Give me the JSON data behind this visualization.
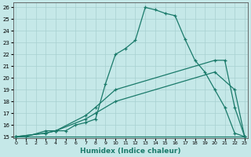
{
  "bg_color": "#c5e8e8",
  "grid_color": "#a8d0d0",
  "line_color": "#1a7a6a",
  "xlabel": "Humidex (Indice chaleur)",
  "xlim": [
    -0.3,
    23.3
  ],
  "ylim": [
    14.9,
    26.4
  ],
  "yticks": [
    15,
    16,
    17,
    18,
    19,
    20,
    21,
    22,
    23,
    24,
    25,
    26
  ],
  "xticks": [
    0,
    1,
    2,
    3,
    4,
    5,
    6,
    7,
    8,
    9,
    10,
    11,
    12,
    13,
    14,
    15,
    16,
    17,
    18,
    19,
    20,
    21,
    22,
    23
  ],
  "series": [
    {
      "x": [
        0,
        1,
        3,
        4,
        5,
        6,
        7,
        8,
        9,
        10,
        11,
        12,
        13,
        14,
        15,
        16,
        17,
        18,
        19,
        20,
        21,
        22,
        23
      ],
      "y": [
        15,
        15,
        15.5,
        15.5,
        15.5,
        16.0,
        16.2,
        16.5,
        19.5,
        22.0,
        22.5,
        23.2,
        26.0,
        25.8,
        25.5,
        25.3,
        23.3,
        21.5,
        20.5,
        19.0,
        17.5,
        15.3,
        15
      ]
    },
    {
      "x": [
        0,
        1,
        3,
        4,
        5,
        6,
        7,
        8,
        9,
        10,
        11,
        12,
        13,
        14,
        15,
        16,
        17,
        18,
        19,
        20,
        21,
        22,
        23
      ],
      "y": [
        15,
        15,
        15,
        15,
        15,
        15,
        15,
        15,
        15,
        15,
        15,
        15,
        15,
        15,
        15,
        15,
        15,
        15,
        15,
        15,
        15,
        15,
        15
      ]
    },
    {
      "x": [
        0,
        3,
        4,
        7,
        8,
        10,
        20,
        22,
        23
      ],
      "y": [
        15,
        15.3,
        15.5,
        16.5,
        17.0,
        18.0,
        20.5,
        19.0,
        15
      ]
    },
    {
      "x": [
        0,
        3,
        4,
        7,
        8,
        10,
        20,
        21,
        22,
        23
      ],
      "y": [
        15,
        15.3,
        15.5,
        16.8,
        17.5,
        19.0,
        21.5,
        21.5,
        17.5,
        15
      ]
    }
  ]
}
